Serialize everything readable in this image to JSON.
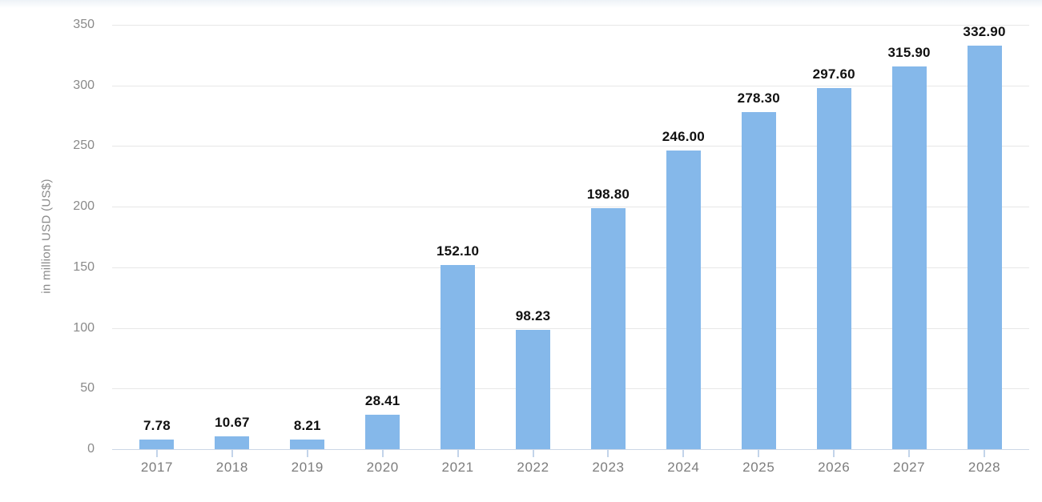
{
  "chart_data": {
    "type": "bar",
    "title": "",
    "xlabel": "",
    "ylabel": "in million USD (US$)",
    "categories": [
      "2017",
      "2018",
      "2019",
      "2020",
      "2021",
      "2022",
      "2023",
      "2024",
      "2025",
      "2026",
      "2027",
      "2028"
    ],
    "values": [
      7.78,
      10.67,
      8.21,
      28.41,
      152.1,
      98.23,
      198.8,
      246.0,
      278.3,
      297.6,
      315.9,
      332.9
    ],
    "value_labels": [
      "7.78",
      "10.67",
      "8.21",
      "28.41",
      "152.10",
      "98.23",
      "198.80",
      "246.00",
      "278.30",
      "297.60",
      "315.90",
      "332.90"
    ],
    "y_ticks": [
      "0",
      "50",
      "100",
      "150",
      "200",
      "250",
      "300",
      "350"
    ],
    "ylim": [
      0,
      350
    ],
    "grid": true,
    "legend": "none",
    "colors": {
      "bar": "#85b8ea",
      "grid_line": "#e7e7e7",
      "baseline": "#ccd7e6",
      "tick_mark": "#c3d4ea",
      "axis_tick_text": "#8a8a8a",
      "category_text": "#7d7d7d",
      "value_label_text": "#111111",
      "background": "#ffffff",
      "top_band": "#edf2f7"
    }
  }
}
